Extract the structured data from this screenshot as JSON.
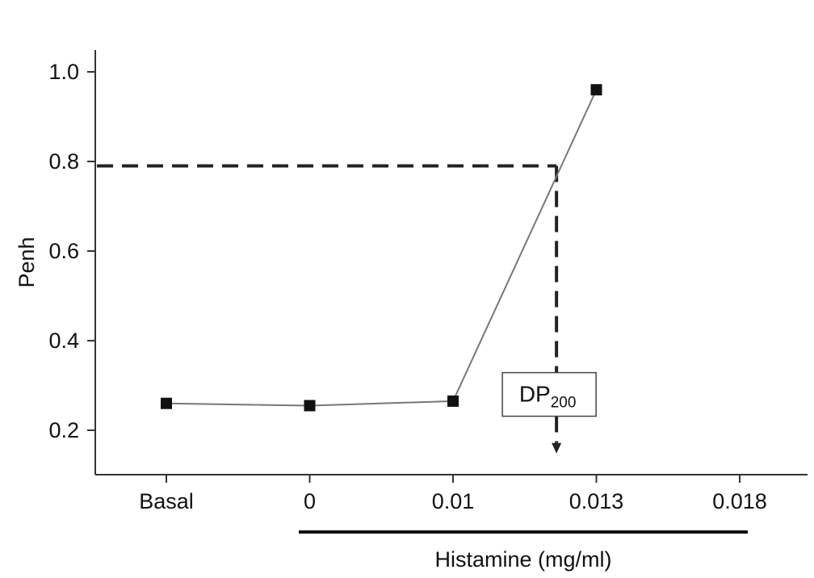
{
  "chart_data": {
    "type": "line",
    "categories": [
      "Basal",
      "0",
      "0.01",
      "0.013",
      "0.018"
    ],
    "series": [
      {
        "values": [
          0.26,
          0.255,
          0.265,
          0.96,
          null
        ]
      }
    ],
    "ylabel": "Penh",
    "xlabel": "Histamine (mg/ml)",
    "ylim": [
      0.1,
      1.05
    ],
    "yticks": [
      "0.2",
      "0.4",
      "0.6",
      "0.8",
      "1.0"
    ],
    "grid": false,
    "annotation": {
      "label_main": "DP",
      "label_sub": "200",
      "threshold_y": 0.79,
      "position_index": 2.75,
      "arrow_end_y": 0.15
    },
    "colors": {
      "line": "#777777",
      "marker": "#111111",
      "axis": "#333333"
    }
  }
}
